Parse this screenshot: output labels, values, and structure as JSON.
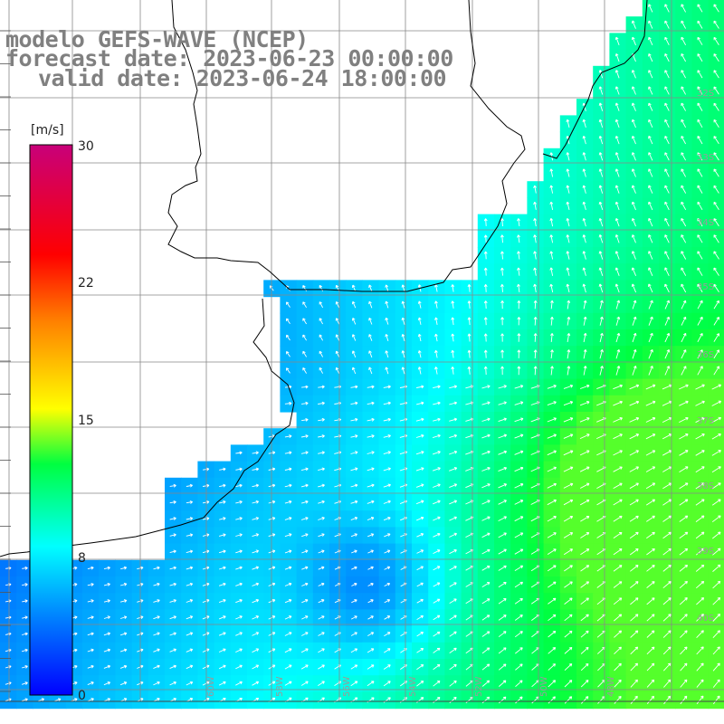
{
  "title": {
    "model_line": "modelo GEFS-WAVE (NCEP)",
    "forecast_line": "forecast date: 2023-06-23 00:00:00",
    "valid_line": "valid date: 2023-06-24 18:00:00"
  },
  "colorbar": {
    "unit": "[m/s]",
    "ticks": [
      "30",
      "22",
      "15",
      "8",
      "0"
    ],
    "tick_values": [
      30,
      22,
      15,
      8,
      0
    ],
    "range": [
      0,
      30
    ],
    "colors": [
      "#0000ff",
      "#0080ff",
      "#00ffff",
      "#00ff00",
      "#ffff00",
      "#ff8000",
      "#ff0000",
      "#c8007a"
    ]
  },
  "grid_labels": {
    "latitudes": [
      "32S",
      "33S",
      "34S",
      "35S",
      "36S",
      "37S",
      "38S",
      "39S",
      "40S"
    ],
    "longitudes": [
      "60W",
      "58W",
      "56W",
      "54W",
      "52W",
      "50W",
      "48W"
    ]
  },
  "map": {
    "land_color": "#ffffff",
    "coast_color": "#000000",
    "grid_color": "#888888",
    "field": "wind speed with direction arrows"
  }
}
